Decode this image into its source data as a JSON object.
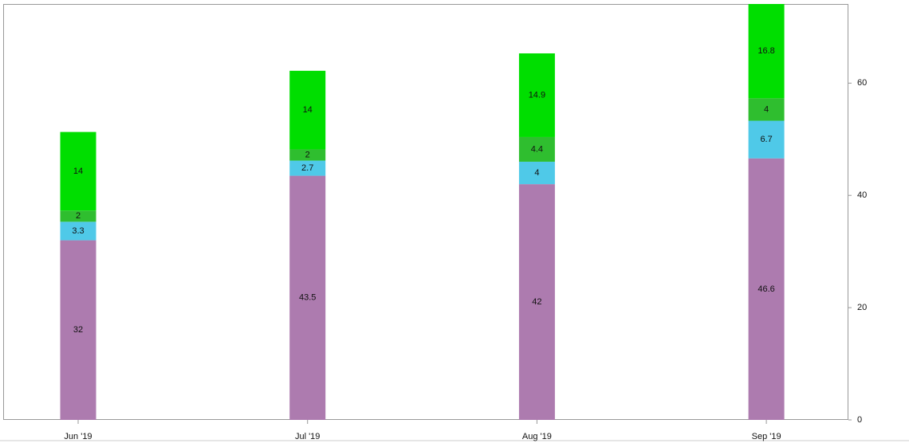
{
  "chart_data": {
    "type": "stacked_bar",
    "categories": [
      "Jun '19",
      "Jul '19",
      "Aug '19",
      "Sep '19"
    ],
    "series": [
      {
        "color": "#ad7baf",
        "values": [
          32,
          43.5,
          42,
          46.6
        ]
      },
      {
        "color": "#4fc9e8",
        "values": [
          3.3,
          2.7,
          4,
          6.7
        ]
      },
      {
        "color": "#2fbe2f",
        "values": [
          2,
          2,
          4.4,
          4
        ]
      },
      {
        "color": "#00de00",
        "values": [
          14,
          14,
          14.9,
          16.8
        ]
      }
    ],
    "ylim": [
      0,
      74.1
    ],
    "yticks": [
      0,
      20,
      40,
      60
    ],
    "y_axis_side": "right"
  }
}
